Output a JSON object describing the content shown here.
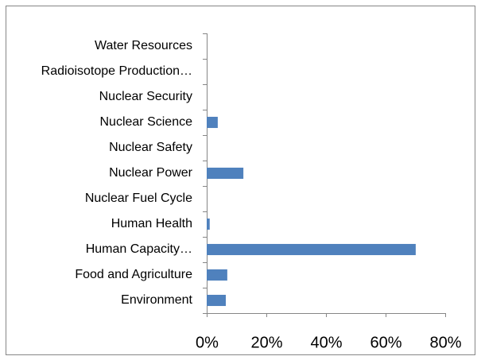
{
  "chart_data": {
    "type": "bar",
    "orientation": "horizontal",
    "categories": [
      "Environment",
      "Food and Agriculture",
      "Human Capacity…",
      "Human Health",
      "Nuclear Fuel Cycle",
      "Nuclear Power",
      "Nuclear Safety",
      "Nuclear Science",
      "Nuclear Security",
      "Radioisotope Production…",
      "Water Resources"
    ],
    "values": [
      6.4,
      6.9,
      70.1,
      1,
      0,
      12.3,
      0,
      3.7,
      0,
      0,
      0
    ],
    "color": "#4f81bd",
    "xlim": [
      0,
      80
    ],
    "xticks": [
      {
        "value": 0,
        "label": "0%"
      },
      {
        "value": 20,
        "label": "20%"
      },
      {
        "value": 40,
        "label": "40%"
      },
      {
        "value": 60,
        "label": "60%"
      },
      {
        "value": 80,
        "label": "80%"
      }
    ],
    "grid": false
  }
}
